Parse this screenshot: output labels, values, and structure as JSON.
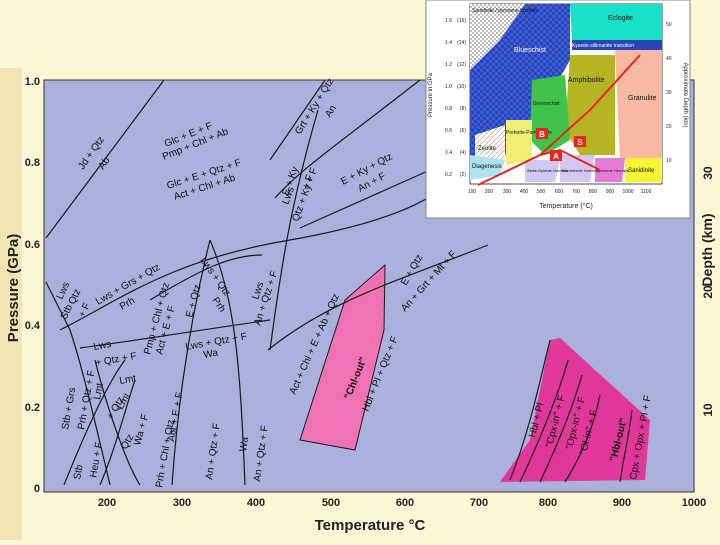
{
  "colors": {
    "page_bg": "#fbf6d6",
    "plot_bg": "#a9b1dc",
    "line": "#1a1a1a",
    "field_pink": "#ee72b4",
    "field_magenta": "#e0389a",
    "inset_path": "#e8251f"
  },
  "axes": {
    "x_label": "Temperature °C",
    "y_label": "Pressure (GPa)",
    "y2_label": "Depth (km)",
    "x_ticks": [
      "200",
      "300",
      "400",
      "500",
      "600",
      "700",
      "800",
      "900",
      "1000"
    ],
    "y_ticks": [
      "1.0",
      "0.8",
      "0.6",
      "0.4",
      "0.2",
      "0"
    ],
    "y2_ticks": [
      "30",
      "20",
      "10"
    ]
  },
  "reactions": [
    "Jd + Qtz",
    "Ab",
    "Glc + E + F",
    "Pmp + Chl + Ab",
    "Glc + E + Qtz + F",
    "Act + Chl + Ab",
    "Grt + Ky + Qtz",
    "An",
    "Lws",
    "Qtz + Ky + F",
    "E + Ky + Qtz",
    "An + F",
    "E + Ky",
    "+ F",
    "Lws",
    "Qtz",
    "Stb",
    "+ F",
    "Lws + Grs + Qtz",
    "Prh",
    "Pmp + Chl + Qtz",
    "Act + E + F",
    "E + Qtz",
    "Prh",
    "Lws + Qtz",
    "Lws",
    "An + Qtz + F",
    "E + Qtz",
    "An + Grt + Mt + F",
    "Lws",
    "+ Qtz + F",
    "Lmt",
    "Stb + Grs",
    "Prh + Qtz + F",
    "Stb",
    "Heu + F",
    "Lmt",
    "Lmt",
    "+ Qtz",
    "Wa + F",
    "Qtz",
    "Act + E + F",
    "Prh + Chl + Qtz",
    "Lws + Qtz + F",
    "Wa",
    "An + Qtz + F",
    "Wa",
    "An + Qtz + F",
    "Act + Chl + E + Ab + Qtz",
    "\"Chl-out\"",
    "Hbl + Pl + Qtz + F",
    "Hbl + Pl",
    "\"Cpx-in\" + F",
    "\"Opx-in\" + F",
    "\"Ol-in\" + F",
    "\"Hbl-out\"",
    "Cpx + Opx + Pl + F"
  ],
  "inset": {
    "top_left_label": "Sanidinite / pyroxene hornfels",
    "fields": [
      {
        "label": "Eclogite"
      },
      {
        "label": "Blueschist"
      },
      {
        "label": "Kyanite-sillimanite transition"
      },
      {
        "label": "Amphibolite"
      },
      {
        "label": "Granulite"
      },
      {
        "label": "Greenschist"
      },
      {
        "label": "Prehnite-Pumpellyite"
      },
      {
        "label": "Zeolite"
      },
      {
        "label": "Diagenesis"
      },
      {
        "label": "Albite-Epidote Hornfels"
      },
      {
        "label": "Hornblende Hornfels"
      },
      {
        "label": "Pyroxene Hornfels"
      },
      {
        "label": "Sanidinite"
      }
    ],
    "markers": [
      "B",
      "S",
      "A"
    ],
    "y_label": "Pressure in GPa",
    "y2_label": "Approximate Depth (km)",
    "x_label": "Temperature (°C)",
    "y_ticks": [
      "1.6",
      "1.4",
      "1.2",
      "1.0",
      "0.8",
      "0.6",
      "0.4",
      "0.2"
    ],
    "y_ticks_bars": [
      "(16)",
      "(14)",
      "(12)",
      "(10)",
      "(8)",
      "(6)",
      "(4)",
      "(2)"
    ],
    "y2_ticks": [
      "50",
      "40",
      "30",
      "20",
      "10"
    ],
    "x_ticks": [
      "100",
      "200",
      "300",
      "400",
      "500",
      "600",
      "700",
      "800",
      "900",
      "1000",
      "1100"
    ]
  }
}
